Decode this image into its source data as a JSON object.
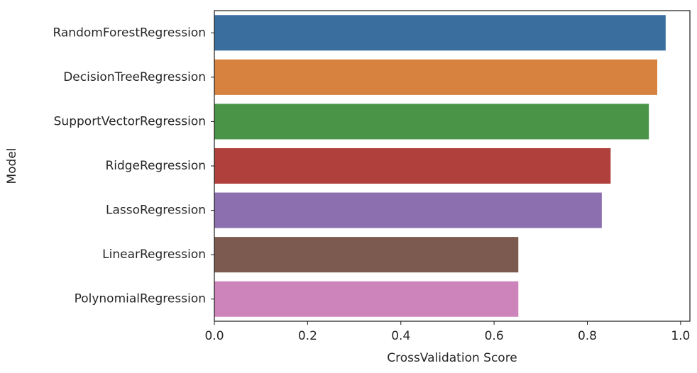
{
  "chart_data": {
    "type": "bar",
    "orientation": "horizontal",
    "title": "",
    "xlabel": "CrossValidation Score",
    "ylabel": "Model",
    "xlim": [
      0.0,
      1.02
    ],
    "xticks": [
      "0.0",
      "0.2",
      "0.4",
      "0.6",
      "0.8",
      "1.0"
    ],
    "xtick_values": [
      0.0,
      0.2,
      0.4,
      0.6,
      0.8,
      1.0
    ],
    "grid": false,
    "categories": [
      "RandomForestRegression",
      "DecisionTreeRegression",
      "SupportVectorRegression",
      "RidgeRegression",
      "LassoRegression",
      "LinearRegression",
      "PolynomialRegression"
    ],
    "values": [
      0.968,
      0.95,
      0.932,
      0.85,
      0.831,
      0.652,
      0.652
    ],
    "colors": [
      "#3a6e9f",
      "#d7823f",
      "#4a9447",
      "#b0403c",
      "#8b6fae",
      "#7d5a4f",
      "#cc84bb"
    ]
  }
}
